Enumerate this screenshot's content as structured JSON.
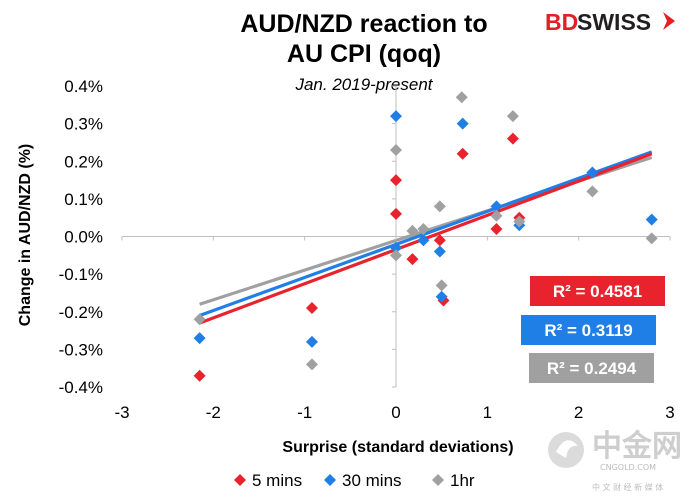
{
  "brand": {
    "name_part1": "BD",
    "name_part2": "SWISS",
    "color_red": "#e31e24",
    "color_dark": "#231f20"
  },
  "watermark": {
    "text": "中金网",
    "subtext": "CNGOLD.COM",
    "tagline": "中 文 财 经 新 媒 体"
  },
  "chart_data": {
    "type": "scatter",
    "title_line1": "AUD/NZD reaction to",
    "title_line2": "AU CPI (qoq)",
    "subtitle": "Jan. 2019-present",
    "xlabel": "Surprise (standard deviations)",
    "ylabel": "Change in AUD/NZD (%)",
    "xlim": [
      -3,
      3
    ],
    "ylim": [
      -0.4,
      0.4
    ],
    "x_ticks": [
      -3,
      -2,
      -1,
      0,
      1,
      2,
      3
    ],
    "x_tick_labels": [
      "-3",
      "-2",
      "-1",
      "0",
      "1",
      "2",
      "3"
    ],
    "y_ticks": [
      0.4,
      0.3,
      0.2,
      0.1,
      0.0,
      -0.1,
      -0.2,
      -0.3,
      -0.4
    ],
    "y_tick_labels": [
      "0.4%",
      "0.3%",
      "0.2%",
      "0.1%",
      "0.0%",
      "-0.1%",
      "-0.2%",
      "-0.3%",
      "-0.4%"
    ],
    "series": [
      {
        "name": "5 mins",
        "color": "#e8232d",
        "points": [
          {
            "x": -2.15,
            "y": -0.37
          },
          {
            "x": -0.92,
            "y": -0.19
          },
          {
            "x": 0.0,
            "y": 0.15
          },
          {
            "x": 0.0,
            "y": 0.06
          },
          {
            "x": 0.18,
            "y": -0.06
          },
          {
            "x": 0.48,
            "y": -0.01
          },
          {
            "x": 0.52,
            "y": -0.17
          },
          {
            "x": 0.73,
            "y": 0.22
          },
          {
            "x": 1.1,
            "y": 0.02
          },
          {
            "x": 1.28,
            "y": 0.26
          },
          {
            "x": 1.35,
            "y": 0.05
          }
        ],
        "trend": [
          {
            "x": -2.15,
            "y": -0.23
          },
          {
            "x": 2.8,
            "y": 0.22
          }
        ],
        "r2_label": "R² = 0.4581"
      },
      {
        "name": "30 mins",
        "color": "#1f7fe6",
        "points": [
          {
            "x": -2.15,
            "y": -0.27
          },
          {
            "x": -0.92,
            "y": -0.28
          },
          {
            "x": 0.0,
            "y": 0.32
          },
          {
            "x": 0.0,
            "y": -0.03
          },
          {
            "x": 0.3,
            "y": -0.01
          },
          {
            "x": 0.48,
            "y": -0.04
          },
          {
            "x": 0.5,
            "y": -0.16
          },
          {
            "x": 0.73,
            "y": 0.3
          },
          {
            "x": 1.1,
            "y": 0.08
          },
          {
            "x": 1.35,
            "y": 0.03
          },
          {
            "x": 2.15,
            "y": 0.17
          },
          {
            "x": 2.8,
            "y": 0.045
          }
        ],
        "trend": [
          {
            "x": -2.15,
            "y": -0.21
          },
          {
            "x": 2.8,
            "y": 0.225
          }
        ],
        "r2_label": "R² = 0.3119"
      },
      {
        "name": "1hr",
        "color": "#a0a0a0",
        "points": [
          {
            "x": -2.15,
            "y": -0.22
          },
          {
            "x": -0.92,
            "y": -0.34
          },
          {
            "x": 0.0,
            "y": 0.23
          },
          {
            "x": 0.0,
            "y": -0.05
          },
          {
            "x": 0.18,
            "y": 0.015
          },
          {
            "x": 0.3,
            "y": 0.02
          },
          {
            "x": 0.48,
            "y": 0.08
          },
          {
            "x": 0.5,
            "y": -0.13
          },
          {
            "x": 0.72,
            "y": 0.37
          },
          {
            "x": 1.1,
            "y": 0.055
          },
          {
            "x": 1.28,
            "y": 0.32
          },
          {
            "x": 1.35,
            "y": 0.04
          },
          {
            "x": 2.15,
            "y": 0.12
          },
          {
            "x": 2.8,
            "y": -0.005
          }
        ],
        "trend": [
          {
            "x": -2.15,
            "y": -0.18
          },
          {
            "x": 2.8,
            "y": 0.21
          }
        ],
        "r2_label": "R² = 0.2494"
      }
    ],
    "legend_position": "bottom-center"
  }
}
